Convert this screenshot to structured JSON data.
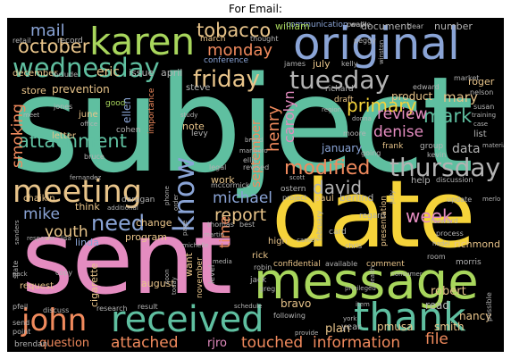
{
  "title": "For Email:",
  "colors": {
    "teal": "#5fbfa0",
    "orange": "#f08a5d",
    "blue": "#8aa4d6",
    "pink": "#e48cc0",
    "green": "#a8d65c",
    "yellow": "#f5d33a",
    "tan": "#e8c48a",
    "gray": "#b3b3b3",
    "background": "#000000"
  },
  "words": {
    "subject": "subject",
    "date": "date",
    "sent": "sent",
    "message": "message",
    "original": "original",
    "karen": "karen",
    "wednesday": "wednesday",
    "meeting": "meeting",
    "thank": "thank",
    "received": "received",
    "john": "john",
    "know": "know",
    "thursday": "thursday",
    "tuesday": "tuesday",
    "friday": "friday",
    "monday": "monday",
    "tobacco": "tobacco",
    "october": "october",
    "mail": "mail",
    "primary": "primary",
    "attachment": "attachment",
    "smoking": "smoking",
    "modified": "modified",
    "need": "need",
    "report": "report",
    "week": "week",
    "david": "david",
    "michael": "michael",
    "mike": "mike",
    "youth": "youth",
    "attached": "attached",
    "touched": "touched",
    "information": "information",
    "file": "file",
    "mark": "mark",
    "review": "review",
    "denise": "denise",
    "september": "september",
    "henry": "henry",
    "carolyn": "carolyn",
    "time": "time",
    "mary": "mary",
    "product": "product",
    "question": "question",
    "rjro": "rjro",
    "plan": "plan",
    "robert": "robert",
    "read": "read",
    "smith": "smith",
    "nancy": "nancy",
    "data": "data",
    "january": "january",
    "eric": "eric",
    "issue": "issue",
    "april": "april",
    "december": "december",
    "william": "william",
    "document": "document",
    "number": "number",
    "communication": "communication",
    "people": "people",
    "march": "march",
    "james": "james",
    "july": "july",
    "kelly": "kelly",
    "conference": "conference",
    "store": "store",
    "prevention": "prevention",
    "roger": "roger",
    "richard": "richard",
    "steve": "steve",
    "edward": "edward",
    "draft": "draft",
    "june": "june",
    "letter": "letter",
    "note": "note",
    "ellen": "ellen",
    "cohen": "cohen",
    "linda": "linda",
    "program": "program",
    "change": "change",
    "think": "think",
    "chaikin": "chaikin",
    "daragan": "daragan",
    "work": "work",
    "august": "august",
    "bravo": "bravo",
    "pmusa": "pmusa",
    "cigarette": "cigarette",
    "request": "request",
    "copy": "copy",
    "state": "state",
    "result": "result",
    "research": "research",
    "discuss": "discuss",
    "send": "send",
    "point": "point",
    "brendan": "brendan",
    "frank": "frank",
    "group": "group",
    "list": "list",
    "help": "help",
    "berlind": "berlind",
    "paul": "paul",
    "card": "card",
    "presentation": "presentation",
    "richmond": "richmond",
    "confidential": "confidential",
    "available": "available",
    "comment": "comment",
    "morris": "morris",
    "high": "high",
    "rick": "rick",
    "jack": "jack",
    "greg": "greg",
    "robin": "robin",
    "want": "want",
    "november": "november",
    "level": "level",
    "legal": "legal",
    "scott": "scott",
    "project": "project",
    "following": "following",
    "year": "year",
    "peggy": "peggy",
    "walk": "walk",
    "dear": "dear",
    "market": "market",
    "nelson": "nelson",
    "region": "region",
    "donna": "donna",
    "susan": "susan",
    "training": "training",
    "case": "case",
    "kevin": "kevin",
    "update": "update",
    "merlo": "merlo",
    "regard": "regard",
    "forward": "forward",
    "process": "process",
    "hadel": "hadel",
    "consumer": "consumer",
    "privileged": "privileged",
    "item": "item",
    "provide": "provide",
    "york": "york",
    "possible": "possible",
    "schedule": "schedule",
    "media": "media",
    "camel": "camel",
    "chris": "chris",
    "room": "room",
    "fernandez": "fernandez",
    "sanders": "sanders",
    "response": "response",
    "pfeil": "pfeil",
    "today": "today",
    "soon": "soon",
    "thomas": "thomas",
    "best": "best",
    "martin": "martin",
    "michelle": "michelle",
    "phone": "phone",
    "order": "order",
    "marlboro": "marlboro",
    "revised": "revised",
    "ellis": "ellis",
    "good": "good",
    "thought": "thought",
    "include": "include",
    "retail": "retail",
    "record": "record",
    "jones": "jones",
    "office": "office",
    "bruce": "bruce",
    "meet": "meet",
    "study": "study",
    "importance": "importance",
    "additional": "additional",
    "levy": "levy",
    "mccormick": "mccormick",
    "ostern": "ostern",
    "brand": "brand",
    "moore": "moore",
    "going": "going",
    "winston": "winston",
    "health": "health",
    "discussion": "discussion",
    "judy": "judy",
    "february": "february",
    "material": "material",
    "pack": "pack",
    "page": "page",
    "lisa": "lisa"
  }
}
